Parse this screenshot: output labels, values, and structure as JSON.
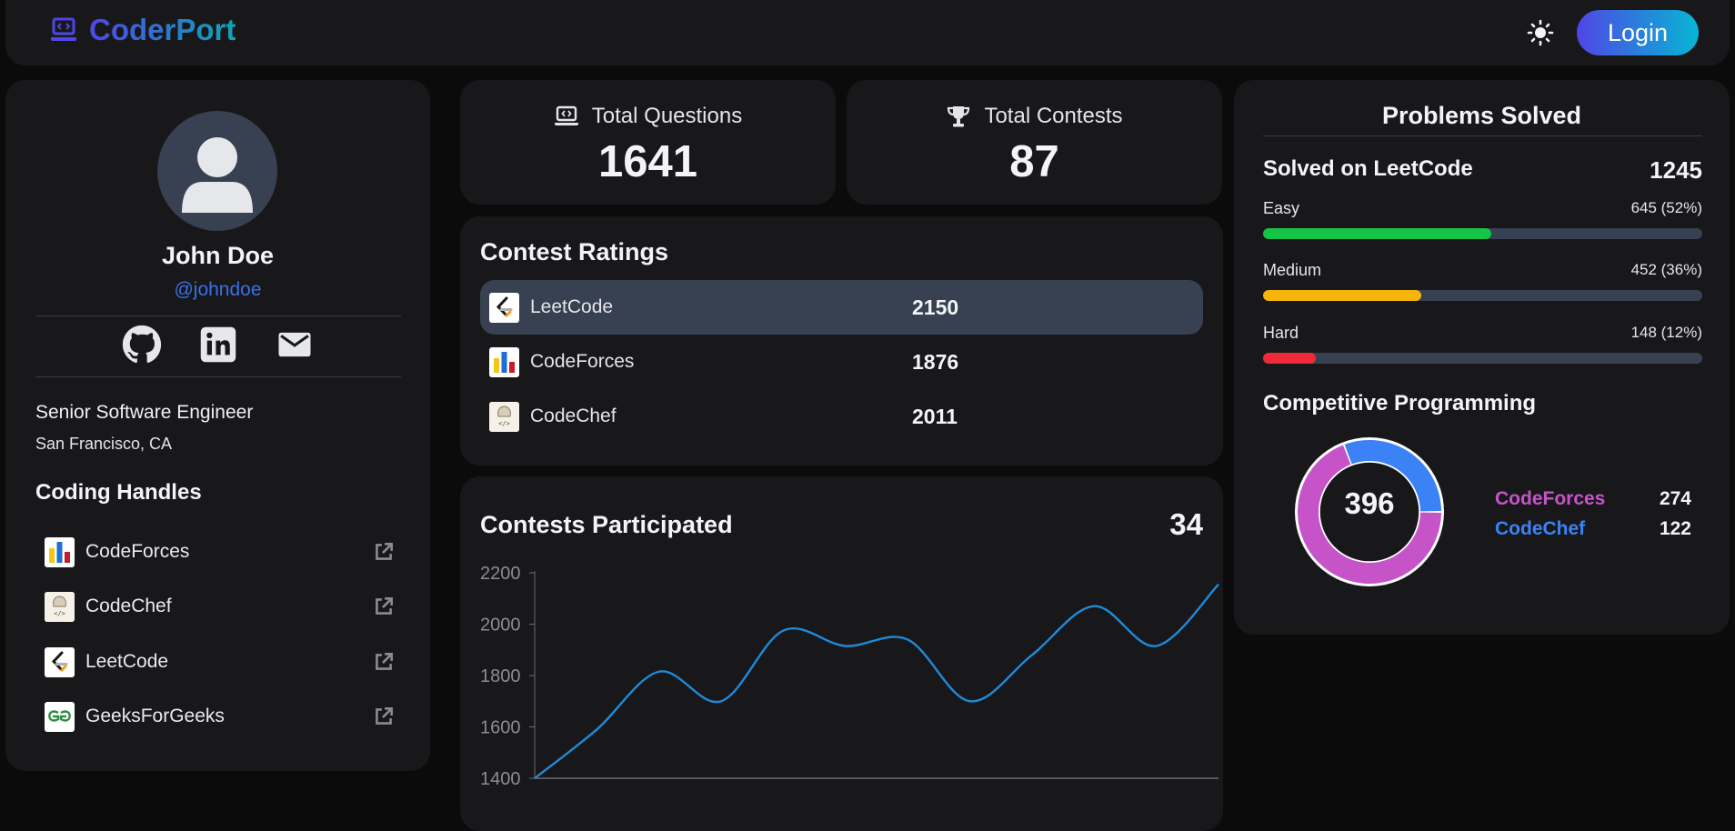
{
  "header": {
    "brand": "CoderPort",
    "login_label": "Login",
    "theme_icon": "sun-icon",
    "logo_icon": "laptop-code-icon"
  },
  "profile": {
    "name": "John Doe",
    "handle": "@johndoe",
    "job_title": "Senior Software Engineer",
    "location": "San Francisco, CA",
    "socials": [
      "github-icon",
      "linkedin-icon",
      "mail-icon"
    ],
    "handles_title": "Coding Handles",
    "handles": [
      {
        "label": "CodeForces",
        "icon": "codeforces-logo"
      },
      {
        "label": "CodeChef",
        "icon": "codechef-logo"
      },
      {
        "label": "LeetCode",
        "icon": "leetcode-logo"
      },
      {
        "label": "GeeksForGeeks",
        "icon": "geeksforgeeks-logo"
      }
    ]
  },
  "stats": {
    "questions_label": "Total Questions",
    "questions_value": "1641",
    "contests_label": "Total Contests",
    "contests_value": "87"
  },
  "ratings": {
    "title": "Contest Ratings",
    "rows": [
      {
        "label": "LeetCode",
        "value": "2150",
        "icon": "leetcode-logo",
        "active": true
      },
      {
        "label": "CodeForces",
        "value": "1876",
        "icon": "codeforces-logo",
        "active": false
      },
      {
        "label": "CodeChef",
        "value": "2011",
        "icon": "codechef-logo",
        "active": false
      }
    ]
  },
  "participated": {
    "title": "Contests Participated",
    "count": "34"
  },
  "chart_data": {
    "type": "line",
    "y": [
      1400,
      1590,
      1815,
      1700,
      1975,
      1915,
      1940,
      1700,
      1880,
      2070,
      1915,
      2155
    ],
    "ylim": [
      1400,
      2200
    ],
    "yticks": [
      1400,
      1600,
      1800,
      2000,
      2200
    ],
    "grid": false,
    "color": "#1f8ad8"
  },
  "problems": {
    "title": "Problems Solved",
    "leetcode_label": "Solved on LeetCode",
    "leetcode_total": "1245",
    "difficulties": [
      {
        "name": "Easy",
        "stat": "645 (52%)",
        "fraction": 0.52,
        "color": "#16c447"
      },
      {
        "name": "Medium",
        "stat": "452 (36%)",
        "fraction": 0.36,
        "color": "#f5b50b"
      },
      {
        "name": "Hard",
        "stat": "148 (12%)",
        "fraction": 0.12,
        "color": "#ef2b3a"
      }
    ],
    "cp_title": "Competitive Programming",
    "cp_total": "396",
    "cp_split": [
      {
        "name": "CodeForces",
        "value": 274,
        "label": "274",
        "color": "#c654c8"
      },
      {
        "name": "CodeChef",
        "value": 122,
        "label": "122",
        "color": "#3b82f6"
      }
    ]
  }
}
